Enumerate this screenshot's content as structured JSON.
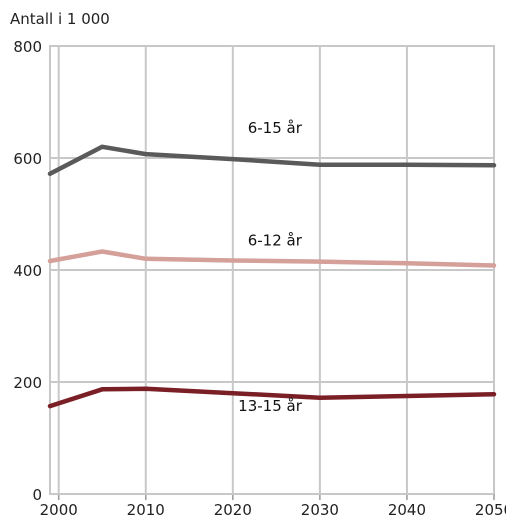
{
  "chart_data": {
    "type": "line",
    "ylabel": "Antall i 1 000",
    "xlim": [
      1999,
      2050
    ],
    "ylim": [
      0,
      800
    ],
    "xticks": [
      "2000",
      "2010",
      "2020",
      "2030",
      "2040",
      "2050"
    ],
    "yticks": [
      "0",
      "200",
      "400",
      "600",
      "800"
    ],
    "grid": true,
    "series": [
      {
        "name": "6-15 år",
        "color": "#5a5a5a",
        "x": [
          1999,
          2005,
          2010,
          2020,
          2030,
          2040,
          2050
        ],
        "y": [
          572,
          620,
          607,
          598,
          588,
          588,
          587
        ],
        "label_at": [
          2030,
          645
        ]
      },
      {
        "name": "6-12 år",
        "color": "#d4a099",
        "x": [
          1999,
          2005,
          2010,
          2020,
          2030,
          2040,
          2050
        ],
        "y": [
          416,
          433,
          420,
          417,
          415,
          412,
          408
        ],
        "label_at": [
          2030,
          444
        ]
      },
      {
        "name": "13-15 år",
        "color": "#7a1f26",
        "x": [
          1999,
          2005,
          2010,
          2020,
          2030,
          2040,
          2050
        ],
        "y": [
          157,
          187,
          188,
          180,
          172,
          175,
          178
        ],
        "label_at": [
          2030,
          148
        ]
      }
    ]
  }
}
